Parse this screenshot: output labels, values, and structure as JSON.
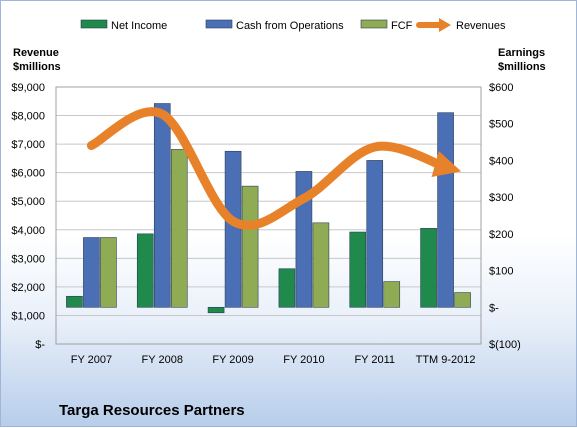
{
  "chart_data": {
    "type": "bar",
    "title": "Targa Resources Partners",
    "categories": [
      "FY 2007",
      "FY 2008",
      "FY 2009",
      "FY 2010",
      "FY 2011",
      "TTM 9-2012"
    ],
    "left_axis": {
      "label_line1": "Revenue",
      "label_line2": "$millions",
      "ticks": [
        "$-",
        "$1,000",
        "$2,000",
        "$3,000",
        "$4,000",
        "$5,000",
        "$6,000",
        "$7,000",
        "$8,000",
        "$9,000"
      ],
      "ylim": [
        0,
        9000
      ]
    },
    "right_axis": {
      "label_line1": "Earnings",
      "label_line2": "$millions",
      "ticks": [
        "$(100)",
        "$-",
        "$100",
        "$200",
        "$300",
        "$400",
        "$500",
        "$600"
      ],
      "ylim": [
        -100,
        600
      ]
    },
    "series": [
      {
        "name": "Net Income",
        "axis": "right",
        "color": "#1f8a4c",
        "values": [
          30,
          200,
          -15,
          105,
          205,
          215
        ]
      },
      {
        "name": "Cash from Operations",
        "axis": "right",
        "color": "#4a6fb5",
        "values": [
          190,
          555,
          425,
          370,
          400,
          530
        ]
      },
      {
        "name": "FCF",
        "axis": "right",
        "color": "#8fac54",
        "values": [
          190,
          430,
          330,
          230,
          70,
          40
        ]
      },
      {
        "name": "Revenues",
        "axis": "left",
        "type": "line",
        "color": "#e8822a",
        "values": [
          6950,
          8050,
          4300,
          5100,
          6900,
          6200
        ]
      }
    ],
    "legend_placement": "top",
    "grid": true
  }
}
